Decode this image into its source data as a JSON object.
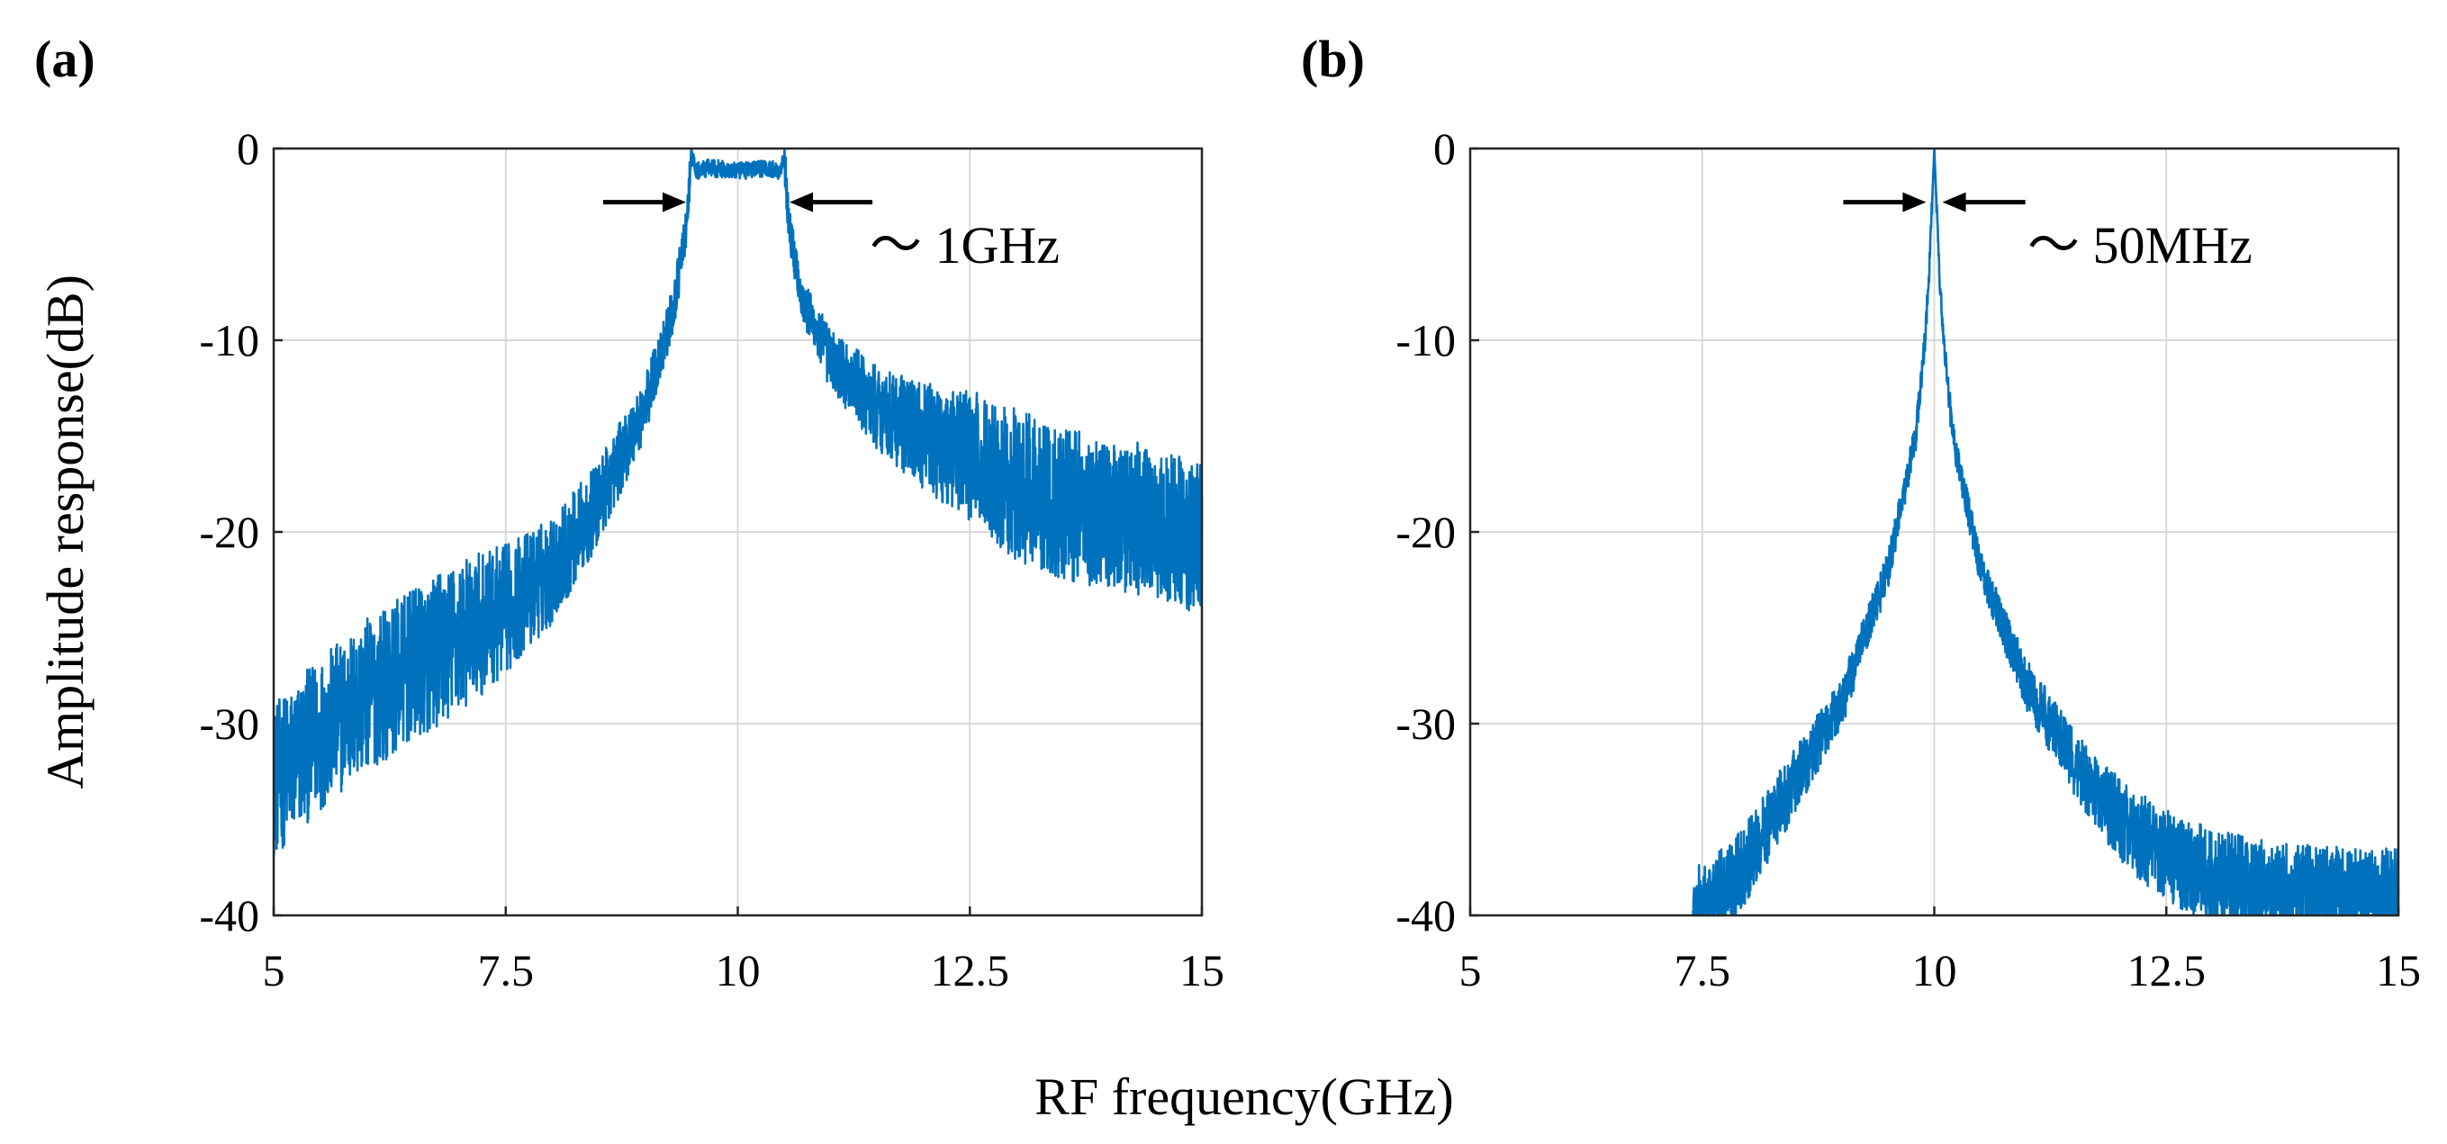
{
  "figure": {
    "shared_xlabel": "RF frequency(GHz)",
    "shared_ylabel": "Amplitude response(dB)",
    "line_color": "#0072BD"
  },
  "chart_data": [
    {
      "type": "line",
      "panel_label": "(a)",
      "title": "",
      "xlabel": "RF frequency(GHz)",
      "ylabel": "Amplitude response(dB)",
      "xlim": [
        5,
        15
      ],
      "ylim": [
        -40,
        0
      ],
      "xticks": [
        5,
        7.5,
        10,
        12.5,
        15
      ],
      "xtick_labels": [
        "5",
        "7.5",
        "10",
        "12.5",
        "15"
      ],
      "yticks": [
        0,
        -10,
        -20,
        -30,
        -40
      ],
      "ytick_labels": [
        "0",
        "-10",
        "-20",
        "-30",
        "-40"
      ],
      "grid": true,
      "annotation": {
        "text": "～ 1GHz",
        "left_arrow_tip_x": 9.5,
        "right_arrow_tip_x": 10.5,
        "arrow_y": -2.8
      },
      "series": [
        {
          "name": "response",
          "filter": "bandpass",
          "center_ghz": 10,
          "bandwidth_ghz": 1,
          "passband_ripple_db": [
            -2,
            0
          ],
          "noise_amplitude_db_at_edges": 4,
          "x": [
            5,
            5.5,
            6,
            6.5,
            7,
            7.5,
            8,
            8.5,
            9,
            9.3,
            9.45,
            9.5,
            9.55,
            9.7,
            10,
            10.3,
            10.45,
            10.5,
            10.55,
            10.7,
            11,
            11.5,
            12,
            12.5,
            13,
            13.5,
            14,
            14.5,
            15
          ],
          "y": [
            -33,
            -30.5,
            -28.5,
            -27,
            -25.5,
            -24,
            -22,
            -18.5,
            -13.5,
            -8.5,
            -4,
            -0.3,
            -1.2,
            -1,
            -1.2,
            -1,
            -1.2,
            -0.3,
            -4,
            -8,
            -11,
            -13.5,
            -15,
            -16,
            -17.5,
            -18.5,
            -19,
            -19.5,
            -20.5
          ]
        }
      ]
    },
    {
      "type": "line",
      "panel_label": "(b)",
      "title": "",
      "xlabel": "RF frequency(GHz)",
      "ylabel": "",
      "xlim": [
        5,
        15
      ],
      "ylim": [
        -40,
        0
      ],
      "xticks": [
        5,
        7.5,
        10,
        12.5,
        15
      ],
      "xtick_labels": [
        "5",
        "7.5",
        "10",
        "12.5",
        "15"
      ],
      "yticks": [
        0,
        -10,
        -20,
        -30,
        -40
      ],
      "ytick_labels": [
        "0",
        "-10",
        "-20",
        "-30",
        "-40"
      ],
      "grid": true,
      "annotation": {
        "text": "～ 50MHz",
        "left_arrow_tip_x": 9.97,
        "right_arrow_tip_x": 10.03,
        "arrow_y": -2.8
      },
      "series": [
        {
          "name": "response",
          "filter": "narrowband",
          "center_ghz": 10,
          "bandwidth_ghz": 0.05,
          "noise_amplitude_db_at_edges": 2.5,
          "x": [
            7.4,
            7.6,
            8,
            8.5,
            9,
            9.5,
            9.8,
            9.9,
            9.95,
            10,
            10.05,
            10.1,
            10.2,
            10.5,
            11,
            11.5,
            12,
            12.5,
            13,
            13.5,
            14,
            14.5,
            15
          ],
          "y": [
            -40,
            -39.5,
            -37,
            -33,
            -29,
            -22,
            -15,
            -10,
            -6,
            0,
            -6,
            -10,
            -15,
            -22,
            -28,
            -32,
            -35,
            -37,
            -38,
            -38.5,
            -38.8,
            -39,
            -39
          ]
        }
      ]
    }
  ]
}
